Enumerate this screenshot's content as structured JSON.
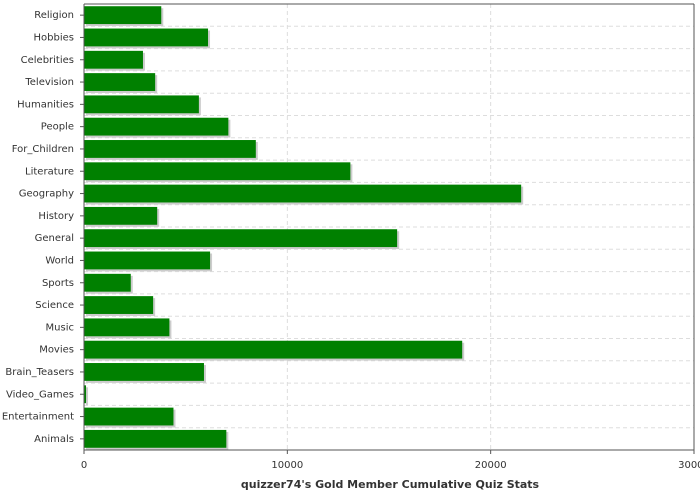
{
  "chart_data": {
    "type": "bar",
    "orientation": "horizontal",
    "title": "quizzer74's Gold Member Cumulative Quiz Stats",
    "categories": [
      "Religion",
      "Hobbies",
      "Celebrities",
      "Television",
      "Humanities",
      "People",
      "For_Children",
      "Literature",
      "Geography",
      "History",
      "General",
      "World",
      "Sports",
      "Science",
      "Music",
      "Movies",
      "Brain_Teasers",
      "Video_Games",
      "Entertainment",
      "Animals"
    ],
    "values": [
      3800,
      6100,
      2900,
      3500,
      5650,
      7100,
      8450,
      13100,
      21500,
      3600,
      15400,
      6200,
      2300,
      3400,
      4200,
      18600,
      5900,
      100,
      4400,
      7000
    ],
    "color": "#008000",
    "xlim": [
      0,
      30000
    ],
    "xticks": [
      0,
      10000,
      20000,
      30000
    ],
    "grid": true
  }
}
